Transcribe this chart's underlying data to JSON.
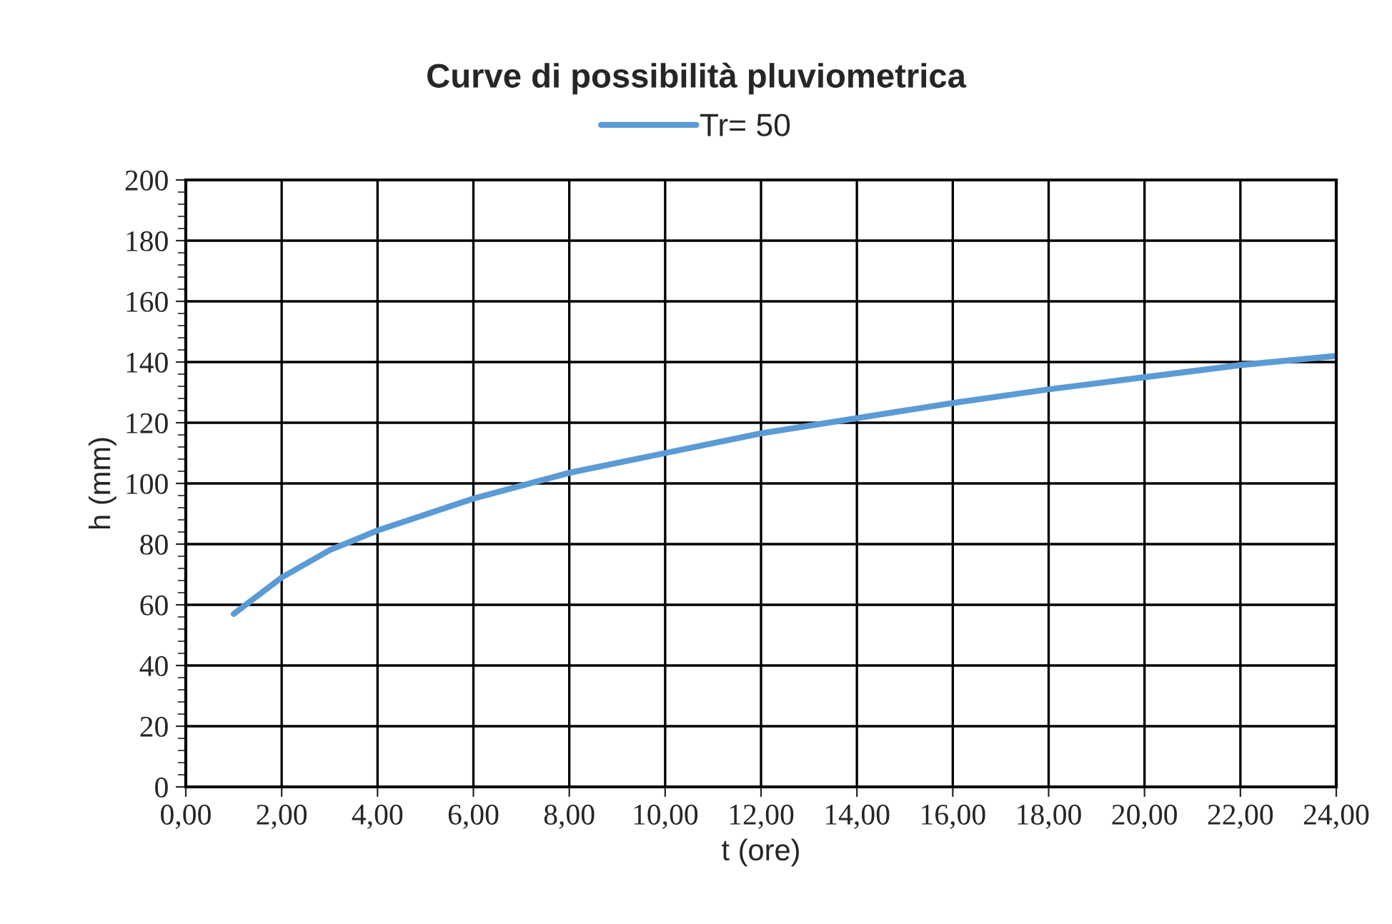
{
  "chart_data": {
    "type": "line",
    "title": "Curve di possibilità pluviometrica",
    "xlabel": "t (ore)",
    "ylabel": "h (mm)",
    "x": [
      1,
      2,
      3,
      4,
      6,
      8,
      10,
      12,
      14,
      16,
      18,
      20,
      22,
      24
    ],
    "series": [
      {
        "name": "Tr= 50",
        "color": "#5b9bd5",
        "values": [
          57,
          69,
          78,
          84.5,
          95,
          103.5,
          110,
          116.5,
          121.5,
          126.5,
          131,
          135,
          139,
          142
        ]
      }
    ],
    "xlim": [
      0,
      24
    ],
    "ylim": [
      0,
      200
    ],
    "xticks": [
      {
        "value": 0,
        "label": "0,00"
      },
      {
        "value": 2,
        "label": "2,00"
      },
      {
        "value": 4,
        "label": "4,00"
      },
      {
        "value": 6,
        "label": "6,00"
      },
      {
        "value": 8,
        "label": "8,00"
      },
      {
        "value": 10,
        "label": "10,00"
      },
      {
        "value": 12,
        "label": "12,00"
      },
      {
        "value": 14,
        "label": "14,00"
      },
      {
        "value": 16,
        "label": "16,00"
      },
      {
        "value": 18,
        "label": "18,00"
      },
      {
        "value": 20,
        "label": "20,00"
      },
      {
        "value": 22,
        "label": "22,00"
      },
      {
        "value": 24,
        "label": "24,00"
      }
    ],
    "yticks": [
      0,
      20,
      40,
      60,
      80,
      100,
      120,
      140,
      160,
      180,
      200
    ],
    "grid": true,
    "legend": "top",
    "marker": "none",
    "line_style": "solid"
  }
}
